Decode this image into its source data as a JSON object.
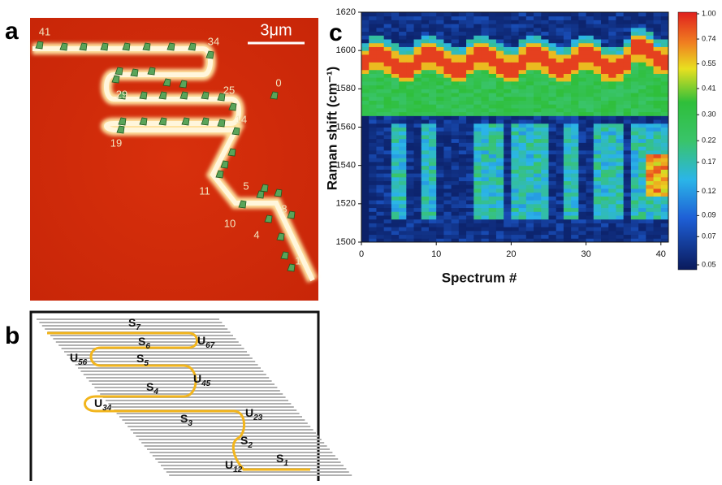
{
  "panel_a": {
    "label": "a",
    "scale_bar": "3μm",
    "markers": [
      41,
      34,
      29,
      25,
      0,
      19,
      14,
      11,
      5,
      8,
      10,
      4,
      1
    ]
  },
  "panel_b": {
    "label": "b",
    "segments": [
      {
        "main": "S",
        "sub": "7"
      },
      {
        "main": "S",
        "sub": "6"
      },
      {
        "main": "U",
        "sub": "67"
      },
      {
        "main": "U",
        "sub": "56"
      },
      {
        "main": "S",
        "sub": "5"
      },
      {
        "main": "S",
        "sub": "4"
      },
      {
        "main": "U",
        "sub": "45"
      },
      {
        "main": "U",
        "sub": "34"
      },
      {
        "main": "S",
        "sub": "3"
      },
      {
        "main": "U",
        "sub": "23"
      },
      {
        "main": "S",
        "sub": "2"
      },
      {
        "main": "U",
        "sub": "12"
      },
      {
        "main": "S",
        "sub": "1"
      }
    ]
  },
  "panel_c": {
    "label": "c",
    "type": "heatmap",
    "xlabel": "Spectrum #",
    "ylabel": "Raman shift (cm⁻¹)",
    "xlim": [
      0,
      41
    ],
    "xticks": [
      0,
      10,
      20,
      30,
      40
    ],
    "ylim": [
      1500,
      1620
    ],
    "yticks": [
      1500,
      1520,
      1540,
      1560,
      1580,
      1600,
      1620
    ],
    "colorbar_scale": "log",
    "colorbar_lim": [
      0.05,
      1
    ],
    "colorbar_ticks": [
      0.05,
      0.07,
      0.09,
      0.12,
      0.17,
      0.22,
      {
        "value": 0.3,
        "label": "0.30"
      },
      0.41,
      0.55,
      0.74,
      {
        "value": 1,
        "label": "1.00"
      }
    ]
  }
}
